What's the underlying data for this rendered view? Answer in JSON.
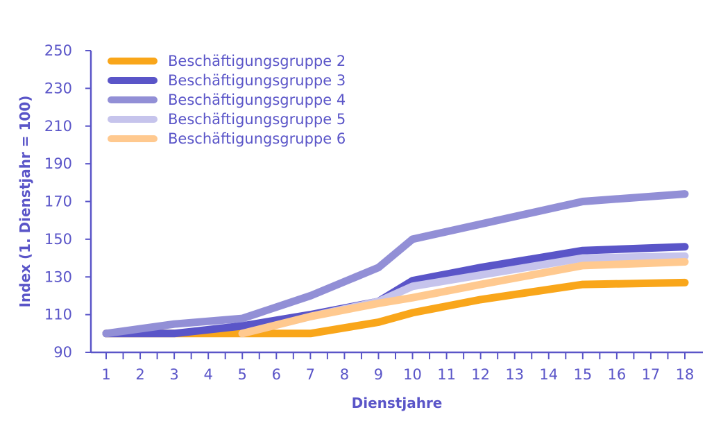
{
  "chart_data": {
    "type": "line",
    "xlabel": "Dienstjahre",
    "ylabel": "Index (1. Dienstjahr = 100)",
    "ylim": [
      90,
      250
    ],
    "yticks": [
      90,
      110,
      130,
      150,
      170,
      190,
      210,
      230,
      250
    ],
    "xlim": [
      1,
      18
    ],
    "xticks": [
      1,
      2,
      3,
      4,
      5,
      6,
      7,
      8,
      9,
      10,
      11,
      12,
      13,
      14,
      15,
      16,
      17,
      18
    ],
    "grid": false,
    "legend_position": "top-left",
    "series": [
      {
        "name": "Beschäftigungsgruppe 2",
        "color": "#f9a61a",
        "points": [
          [
            1,
            100
          ],
          [
            3,
            100
          ],
          [
            5,
            100
          ],
          [
            7,
            100
          ],
          [
            9,
            106
          ],
          [
            10,
            111
          ],
          [
            12,
            118
          ],
          [
            15,
            126
          ],
          [
            18,
            127
          ]
        ]
      },
      {
        "name": "Beschäftigungsgruppe 3",
        "color": "#5a55c8",
        "points": [
          [
            1,
            100
          ],
          [
            3,
            100
          ],
          [
            5,
            104
          ],
          [
            7,
            110
          ],
          [
            9,
            117
          ],
          [
            10,
            128
          ],
          [
            12,
            135
          ],
          [
            15,
            144
          ],
          [
            18,
            146
          ]
        ]
      },
      {
        "name": "Beschäftigungsgruppe 4",
        "color": "#928fd6",
        "points": [
          [
            1,
            100
          ],
          [
            3,
            105
          ],
          [
            5,
            108
          ],
          [
            7,
            120
          ],
          [
            9,
            135
          ],
          [
            10,
            150
          ],
          [
            12,
            158
          ],
          [
            15,
            170
          ],
          [
            18,
            174
          ]
        ]
      },
      {
        "name": "Beschäftigungsgruppe 5",
        "color": "#c6c4ec",
        "points": [
          [
            5,
            100
          ],
          [
            7,
            109
          ],
          [
            9,
            117
          ],
          [
            10,
            125
          ],
          [
            12,
            131
          ],
          [
            15,
            140
          ],
          [
            18,
            141
          ]
        ]
      },
      {
        "name": "Beschäftigungsgruppe 6",
        "color": "#ffc98f",
        "points": [
          [
            5,
            100
          ],
          [
            7,
            109
          ],
          [
            9,
            116
          ],
          [
            10,
            119
          ],
          [
            12,
            126
          ],
          [
            15,
            136
          ],
          [
            18,
            138
          ]
        ]
      }
    ]
  }
}
